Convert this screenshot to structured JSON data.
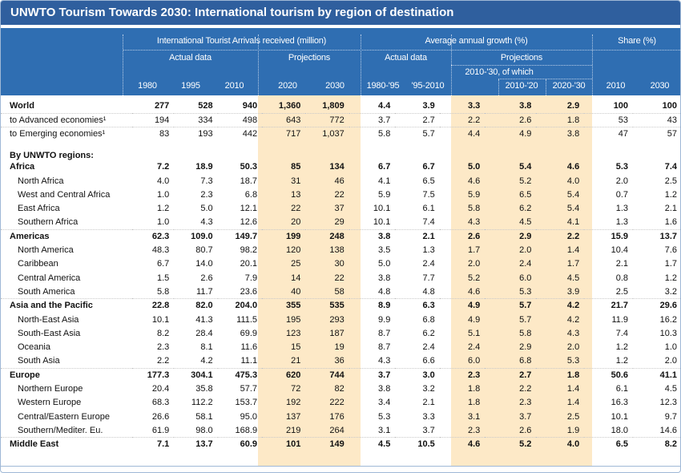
{
  "title": "UNWTO Tourism Towards 2030: International tourism by region of destination",
  "header": {
    "group_arrivals": "International Tourist Arrivals received (million)",
    "group_growth": "Average annual growth (%)",
    "group_share": "Share (%)",
    "actual_data": "Actual data",
    "projections": "Projections",
    "of_which": "2010-'30, of which",
    "columns": [
      "1980",
      "1995",
      "2010",
      "2020",
      "2030",
      "1980-'95",
      "'95-2010",
      "",
      "2010-'20",
      "2020-'30",
      "2010",
      "2030"
    ]
  },
  "rows": [
    {
      "label": "World",
      "values": [
        "277",
        "528",
        "940",
        "1,360",
        "1,809",
        "4.4",
        "3.9",
        "3.3",
        "3.8",
        "2.9",
        "100",
        "100"
      ]
    },
    {
      "label": "to Advanced economies¹",
      "values": [
        "194",
        "334",
        "498",
        "643",
        "772",
        "3.7",
        "2.7",
        "2.2",
        "2.6",
        "1.8",
        "53",
        "43"
      ]
    },
    {
      "label": "to Emerging economies¹",
      "values": [
        "83",
        "193",
        "442",
        "717",
        "1,037",
        "5.8",
        "5.7",
        "4.4",
        "4.9",
        "3.8",
        "47",
        "57"
      ]
    },
    {
      "label": "By UNWTO regions:"
    },
    {
      "label": "Africa",
      "values": [
        "7.2",
        "18.9",
        "50.3",
        "85",
        "134",
        "6.7",
        "6.7",
        "5.0",
        "5.4",
        "4.6",
        "5.3",
        "7.4"
      ]
    },
    {
      "label": "North Africa",
      "values": [
        "4.0",
        "7.3",
        "18.7",
        "31",
        "46",
        "4.1",
        "6.5",
        "4.6",
        "5.2",
        "4.0",
        "2.0",
        "2.5"
      ]
    },
    {
      "label": "West and Central Africa",
      "values": [
        "1.0",
        "2.3",
        "6.8",
        "13",
        "22",
        "5.9",
        "7.5",
        "5.9",
        "6.5",
        "5.4",
        "0.7",
        "1.2"
      ]
    },
    {
      "label": "East Africa",
      "values": [
        "1.2",
        "5.0",
        "12.1",
        "22",
        "37",
        "10.1",
        "6.1",
        "5.8",
        "6.2",
        "5.4",
        "1.3",
        "2.1"
      ]
    },
    {
      "label": "Southern Africa",
      "values": [
        "1.0",
        "4.3",
        "12.6",
        "20",
        "29",
        "10.1",
        "7.4",
        "4.3",
        "4.5",
        "4.1",
        "1.3",
        "1.6"
      ]
    },
    {
      "label": "Americas",
      "values": [
        "62.3",
        "109.0",
        "149.7",
        "199",
        "248",
        "3.8",
        "2.1",
        "2.6",
        "2.9",
        "2.2",
        "15.9",
        "13.7"
      ]
    },
    {
      "label": "North America",
      "values": [
        "48.3",
        "80.7",
        "98.2",
        "120",
        "138",
        "3.5",
        "1.3",
        "1.7",
        "2.0",
        "1.4",
        "10.4",
        "7.6"
      ]
    },
    {
      "label": "Caribbean",
      "values": [
        "6.7",
        "14.0",
        "20.1",
        "25",
        "30",
        "5.0",
        "2.4",
        "2.0",
        "2.4",
        "1.7",
        "2.1",
        "1.7"
      ]
    },
    {
      "label": "Central America",
      "values": [
        "1.5",
        "2.6",
        "7.9",
        "14",
        "22",
        "3.8",
        "7.7",
        "5.2",
        "6.0",
        "4.5",
        "0.8",
        "1.2"
      ]
    },
    {
      "label": "South America",
      "values": [
        "5.8",
        "11.7",
        "23.6",
        "40",
        "58",
        "4.8",
        "4.8",
        "4.6",
        "5.3",
        "3.9",
        "2.5",
        "3.2"
      ]
    },
    {
      "label": "Asia and the Pacific",
      "values": [
        "22.8",
        "82.0",
        "204.0",
        "355",
        "535",
        "8.9",
        "6.3",
        "4.9",
        "5.7",
        "4.2",
        "21.7",
        "29.6"
      ]
    },
    {
      "label": "North-East Asia",
      "values": [
        "10.1",
        "41.3",
        "111.5",
        "195",
        "293",
        "9.9",
        "6.8",
        "4.9",
        "5.7",
        "4.2",
        "11.9",
        "16.2"
      ]
    },
    {
      "label": "South-East Asia",
      "values": [
        "8.2",
        "28.4",
        "69.9",
        "123",
        "187",
        "8.7",
        "6.2",
        "5.1",
        "5.8",
        "4.3",
        "7.4",
        "10.3"
      ]
    },
    {
      "label": "Oceania",
      "values": [
        "2.3",
        "8.1",
        "11.6",
        "15",
        "19",
        "8.7",
        "2.4",
        "2.4",
        "2.9",
        "2.0",
        "1.2",
        "1.0"
      ]
    },
    {
      "label": "South Asia",
      "values": [
        "2.2",
        "4.2",
        "11.1",
        "21",
        "36",
        "4.3",
        "6.6",
        "6.0",
        "6.8",
        "5.3",
        "1.2",
        "2.0"
      ]
    },
    {
      "label": "Europe",
      "values": [
        "177.3",
        "304.1",
        "475.3",
        "620",
        "744",
        "3.7",
        "3.0",
        "2.3",
        "2.7",
        "1.8",
        "50.6",
        "41.1"
      ]
    },
    {
      "label": "Northern Europe",
      "values": [
        "20.4",
        "35.8",
        "57.7",
        "72",
        "82",
        "3.8",
        "3.2",
        "1.8",
        "2.2",
        "1.4",
        "6.1",
        "4.5"
      ]
    },
    {
      "label": "Western Europe",
      "values": [
        "68.3",
        "112.2",
        "153.7",
        "192",
        "222",
        "3.4",
        "2.1",
        "1.8",
        "2.3",
        "1.4",
        "16.3",
        "12.3"
      ]
    },
    {
      "label": "Central/Eastern Europe",
      "values": [
        "26.6",
        "58.1",
        "95.0",
        "137",
        "176",
        "5.3",
        "3.3",
        "3.1",
        "3.7",
        "2.5",
        "10.1",
        "9.7"
      ]
    },
    {
      "label": "Southern/Mediter. Eu.",
      "values": [
        "61.9",
        "98.0",
        "168.9",
        "219",
        "264",
        "3.1",
        "3.7",
        "2.3",
        "2.6",
        "1.9",
        "18.0",
        "14.6"
      ]
    },
    {
      "label": "Middle East",
      "values": [
        "7.1",
        "13.7",
        "60.9",
        "101",
        "149",
        "4.5",
        "10.5",
        "4.6",
        "5.2",
        "4.0",
        "6.5",
        "8.2"
      ]
    }
  ]
}
